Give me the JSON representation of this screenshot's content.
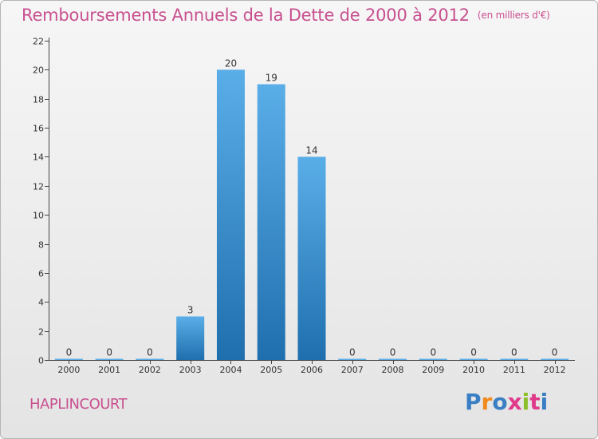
{
  "header": {
    "title": "Remboursements Annuels de la Dette de 2000 à 2012",
    "subtitle": "(en milliers d'€)"
  },
  "footer": {
    "commune": "HAPLINCOURT",
    "logo_letters": [
      "P",
      "r",
      "o",
      "x",
      "i",
      "t",
      "i"
    ]
  },
  "colors": {
    "title": "#c8508f",
    "bar_top": "#5aaee8",
    "bar_bottom": "#1f6fae",
    "logo": [
      "#3a7fc4",
      "#f08a1c",
      "#3a7fc4",
      "#e03a8a",
      "#8cbf2a",
      "#e03a8a",
      "#3a7fc4"
    ]
  },
  "chart_data": {
    "type": "bar",
    "categories": [
      "2000",
      "2001",
      "2002",
      "2003",
      "2004",
      "2005",
      "2006",
      "2007",
      "2008",
      "2009",
      "2010",
      "2011",
      "2012"
    ],
    "values": [
      0,
      0,
      0,
      3,
      20,
      19,
      14,
      0,
      0,
      0,
      0,
      0,
      0
    ],
    "data_labels": [
      "0",
      "0",
      "0",
      "3",
      "20",
      "19",
      "14",
      "0",
      "0",
      "0",
      "0",
      "0",
      "0"
    ],
    "y_ticks": [
      0,
      2,
      4,
      6,
      8,
      10,
      12,
      14,
      16,
      18,
      20,
      22
    ],
    "ylim": [
      0,
      22
    ],
    "title": "Remboursements Annuels de la Dette de 2000 à 2012",
    "xlabel": "",
    "ylabel": "",
    "grid": false,
    "legend": "none"
  }
}
